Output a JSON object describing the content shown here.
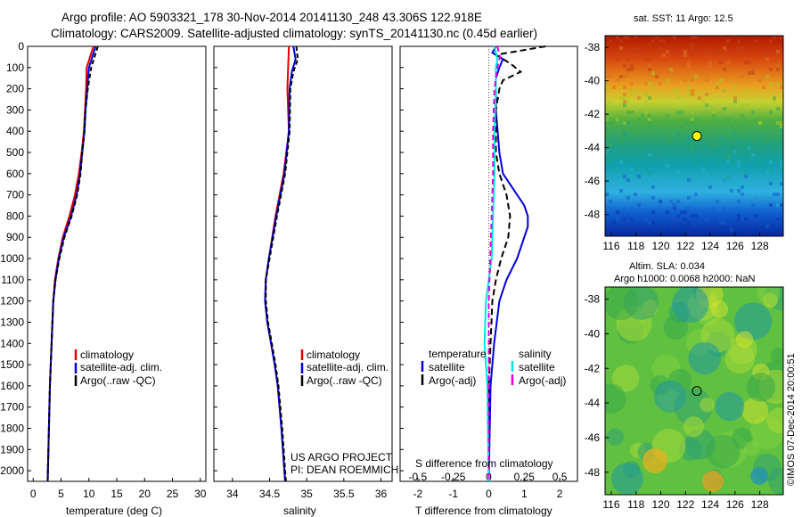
{
  "header": {
    "line1": "Argo profile: AO 5903321_178 30-Nov-2014 20141130_248 43.306S 122.918E",
    "line2": "Climatology: CARS2009. Satellite-adjusted climatology: synTS_20141130.nc (0.45d earlier)"
  },
  "colors": {
    "climatology": "#e00000",
    "satellite": "#0000dd",
    "argo": "#000000",
    "sat_salinity": "#00e5e5",
    "argo_salinity": "#e000e0"
  },
  "chart_data": [
    {
      "type": "line",
      "panel": "temperature",
      "xlabel": "temperature (deg C)",
      "xlim": [
        -1,
        31
      ],
      "ylim": [
        2050,
        0
      ],
      "xticks": [
        "0",
        "5",
        "10",
        "15",
        "20",
        "25",
        "30"
      ],
      "depth_ticks": [
        "0",
        "100",
        "200",
        "300",
        "400",
        "500",
        "600",
        "700",
        "800",
        "900",
        "1000",
        "1100",
        "1200",
        "1300",
        "1400",
        "1500",
        "1600",
        "1700",
        "1800",
        "1900",
        "2000"
      ],
      "legend": [
        "climatology",
        "satellite-adj. clim.",
        "Argo(..raw -QC)"
      ],
      "series": [
        {
          "name": "climatology",
          "depth": [
            0,
            100,
            200,
            300,
            400,
            500,
            600,
            700,
            800,
            900,
            1000,
            1100,
            1200,
            1400,
            1600,
            2050
          ],
          "values": [
            10.8,
            9.6,
            9.5,
            9.3,
            9.1,
            8.7,
            8.2,
            7.5,
            6.5,
            5.3,
            4.5,
            3.9,
            3.6,
            3.3,
            3.0,
            2.6
          ]
        },
        {
          "name": "satellite-adj. clim.",
          "depth": [
            0,
            100,
            200,
            300,
            400,
            500,
            600,
            700,
            800,
            900,
            1000,
            1100,
            1200,
            1400,
            1600,
            2050
          ],
          "values": [
            11.2,
            10.0,
            9.7,
            9.4,
            9.2,
            8.8,
            8.4,
            7.8,
            6.8,
            5.5,
            4.6,
            4.0,
            3.6,
            3.3,
            3.0,
            2.6
          ]
        },
        {
          "name": "Argo(..raw -QC)",
          "depth": [
            0,
            100,
            200,
            300,
            400,
            500,
            600,
            700,
            800,
            900,
            1000,
            1100,
            1200,
            1400,
            1600,
            2050
          ],
          "values": [
            11.6,
            10.4,
            9.8,
            9.4,
            9.2,
            8.8,
            8.5,
            7.9,
            6.9,
            5.6,
            4.7,
            4.0,
            3.6,
            3.3,
            3.0,
            2.6
          ]
        }
      ]
    },
    {
      "type": "line",
      "panel": "salinity",
      "xlabel": "salinity",
      "xlim": [
        33.75,
        36.15
      ],
      "ylim": [
        2050,
        0
      ],
      "xticks": [
        "34",
        "34.5",
        "35",
        "35.5",
        "36"
      ],
      "legend": [
        "climatology",
        "satellite-adj. clim.",
        "Argo(..raw -QC)"
      ],
      "annotation": [
        "US ARGO PROJECT",
        "PI: DEAN ROEMMICH"
      ],
      "series": [
        {
          "name": "climatology",
          "depth": [
            0,
            200,
            400,
            600,
            800,
            1000,
            1100,
            1200,
            1300,
            1400,
            1500,
            1600,
            1800,
            2050
          ],
          "values": [
            34.76,
            34.74,
            34.76,
            34.69,
            34.58,
            34.49,
            34.45,
            34.44,
            34.47,
            34.52,
            34.57,
            34.61,
            34.66,
            34.71
          ]
        },
        {
          "name": "satellite-adj. clim.",
          "depth": [
            0,
            60,
            120,
            200,
            400,
            600,
            800,
            1000,
            1100,
            1200,
            1300,
            1400,
            1500,
            1600,
            1800,
            2050
          ],
          "values": [
            34.82,
            34.85,
            34.8,
            34.77,
            34.76,
            34.7,
            34.59,
            34.49,
            34.45,
            34.44,
            34.47,
            34.52,
            34.57,
            34.61,
            34.66,
            34.71
          ]
        },
        {
          "name": "Argo(..raw -QC)",
          "depth": [
            0,
            60,
            120,
            200,
            400,
            600,
            800,
            1000,
            1100,
            1200,
            1300,
            1400,
            1500,
            1600,
            1800,
            2050
          ],
          "values": [
            34.86,
            34.88,
            34.82,
            34.78,
            34.77,
            34.71,
            34.6,
            34.5,
            34.45,
            34.45,
            34.48,
            34.53,
            34.58,
            34.62,
            34.67,
            34.72
          ]
        }
      ]
    },
    {
      "type": "line",
      "panel": "difference",
      "xlabel": "T difference from climatology",
      "xlabel_top": "S difference from climatology",
      "xlim": [
        -2.5,
        2.5
      ],
      "ylim": [
        2050,
        0
      ],
      "xticks": [
        "-2",
        "-1",
        "0",
        "1",
        "2"
      ],
      "sticks": [
        "-0.5",
        "-0.25",
        "0",
        "0.25",
        "0.5"
      ],
      "legend_temperature_title": "temperature",
      "legend_salinity_title": "salinity",
      "legend_temperature": [
        "satellite",
        "Argo(-adj)"
      ],
      "legend_salinity": [
        "satellite",
        "Argo(-adj)"
      ],
      "series": [
        {
          "name": "satellite",
          "depth": [
            0,
            30,
            60,
            100,
            150,
            300,
            500,
            600,
            650,
            700,
            750,
            800,
            850,
            900,
            1000,
            1100,
            1200,
            1400,
            1600,
            2050
          ],
          "values": [
            0.2,
            0.1,
            0.4,
            0.3,
            0.2,
            0.2,
            0.3,
            0.4,
            0.6,
            0.8,
            1.0,
            1.1,
            1.1,
            1.0,
            0.8,
            0.5,
            0.3,
            0.15,
            0.05,
            0.0
          ]
        },
        {
          "name": "Argo(-adj)",
          "depth": [
            0,
            20,
            40,
            80,
            120,
            160,
            200,
            300,
            500,
            600,
            700,
            800,
            900,
            1000,
            1100,
            1200,
            1400,
            1600,
            2050
          ],
          "values": [
            1.6,
            0.9,
            0.2,
            0.6,
            0.9,
            0.4,
            0.3,
            0.2,
            0.2,
            0.3,
            0.5,
            0.6,
            0.55,
            0.35,
            0.2,
            0.1,
            0.05,
            0.0,
            0.0
          ]
        },
        {
          "name": "satellite salinity",
          "depth": [
            0,
            60,
            100,
            200,
            400,
            600,
            800,
            1000,
            1200,
            1400,
            1600,
            2050
          ],
          "values": [
            0.04,
            0.06,
            0.05,
            0.05,
            0.04,
            0.04,
            0.03,
            0.02,
            -0.02,
            -0.03,
            -0.01,
            0.0
          ]
        },
        {
          "name": "Argo(-adj) salinity",
          "depth": [
            0,
            50,
            100,
            200,
            400,
            600,
            800,
            1000,
            1200,
            1400,
            1600,
            2050
          ],
          "values": [
            0.06,
            0.08,
            0.06,
            0.04,
            0.03,
            0.03,
            0.02,
            0.01,
            0.0,
            0.0,
            0.0,
            0.0
          ]
        }
      ]
    },
    {
      "type": "heatmap",
      "panel": "sst-map",
      "title": "sat. SST: 11  Argo: 12.5",
      "xticks": [
        "116",
        "118",
        "120",
        "122",
        "124",
        "126",
        "128"
      ],
      "yticks": [
        "-38",
        "-40",
        "-42",
        "-44",
        "-46",
        "-48"
      ],
      "argo_position": {
        "lon": 122.918,
        "lat": -43.306
      }
    },
    {
      "type": "heatmap",
      "panel": "sla-map",
      "title1": "Altim. SLA: 0.034",
      "title2": "Argo h1000: 0.0068 h2000: NaN",
      "xticks": [
        "116",
        "118",
        "120",
        "122",
        "124",
        "126",
        "128"
      ],
      "yticks": [
        "-38",
        "-40",
        "-42",
        "-44",
        "-46",
        "-48"
      ],
      "argo_position": {
        "lon": 122.918,
        "lat": -43.306
      }
    }
  ],
  "credit": "©IMOS 07-Dec-2014 20:00:51"
}
